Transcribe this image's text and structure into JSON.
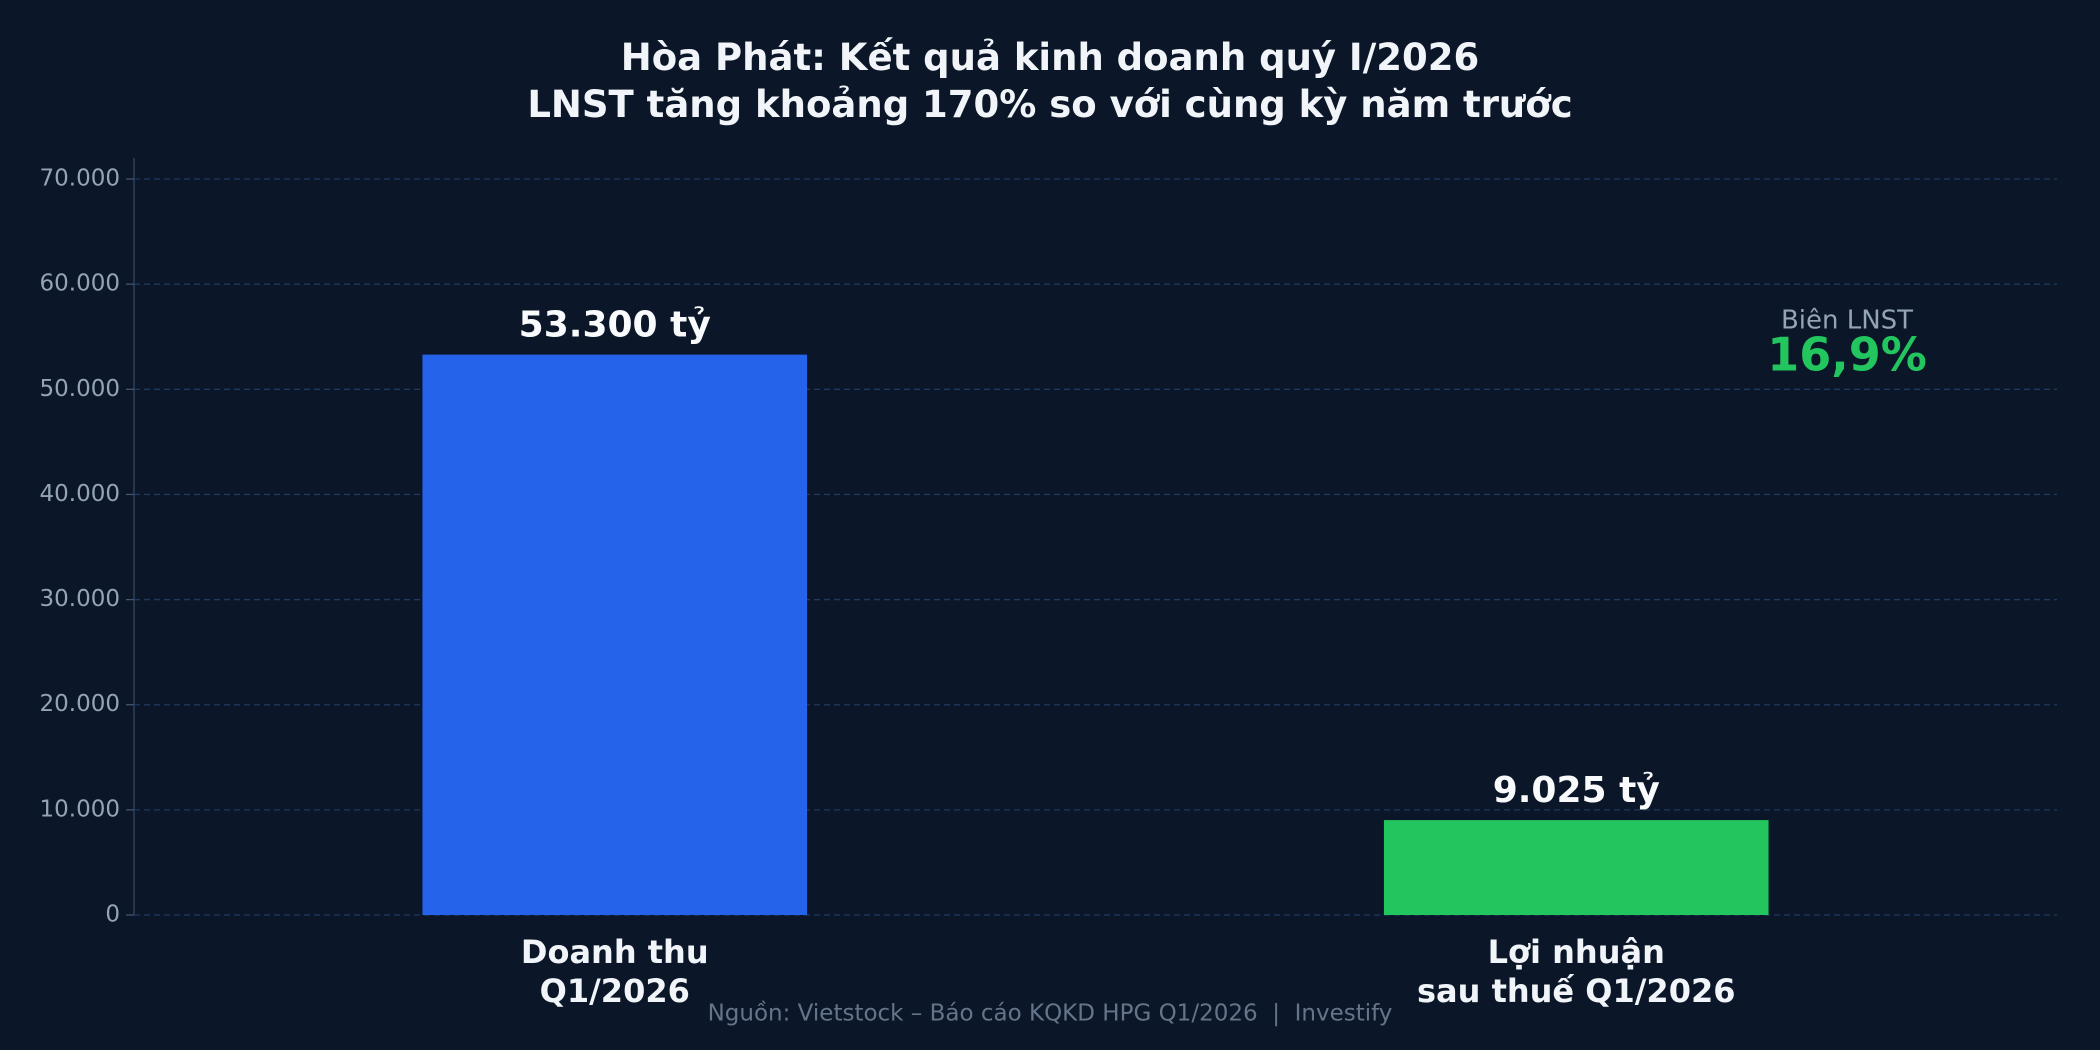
{
  "chart_data": {
    "type": "bar",
    "title": "Hòa Phát: Kết quả kinh doanh quý I/2026\nLNST tăng khoảng 170% so với cùng kỳ năm trước",
    "categories": [
      "Doanh thu\nQ1/2026",
      "Lợi nhuận\nsau thuế Q1/2026"
    ],
    "values": [
      53300,
      9025
    ],
    "value_labels": [
      "53.300 tỷ",
      "9.025 tỷ"
    ],
    "colors": [
      "#2563eb",
      "#22c55e"
    ],
    "ylim": [
      0,
      72000
    ],
    "yticks": [
      0,
      {
        "value": 10000,
        "label": "10.000"
      },
      {
        "value": 20000,
        "label": "20.000"
      },
      {
        "value": 30000,
        "label": "30.000"
      },
      {
        "value": 40000,
        "label": "40.000"
      },
      {
        "value": 50000,
        "label": "50.000"
      },
      {
        "value": 60000,
        "label": "60.000"
      },
      {
        "value": 70000,
        "label": "70.000"
      }
    ],
    "grid": true,
    "annotation": {
      "label": "Biên LNST",
      "value": "16,9%"
    },
    "source": "Nguồn: Vietstock – Báo cáo KQKD HPG Q1/2026  |  Investify"
  }
}
